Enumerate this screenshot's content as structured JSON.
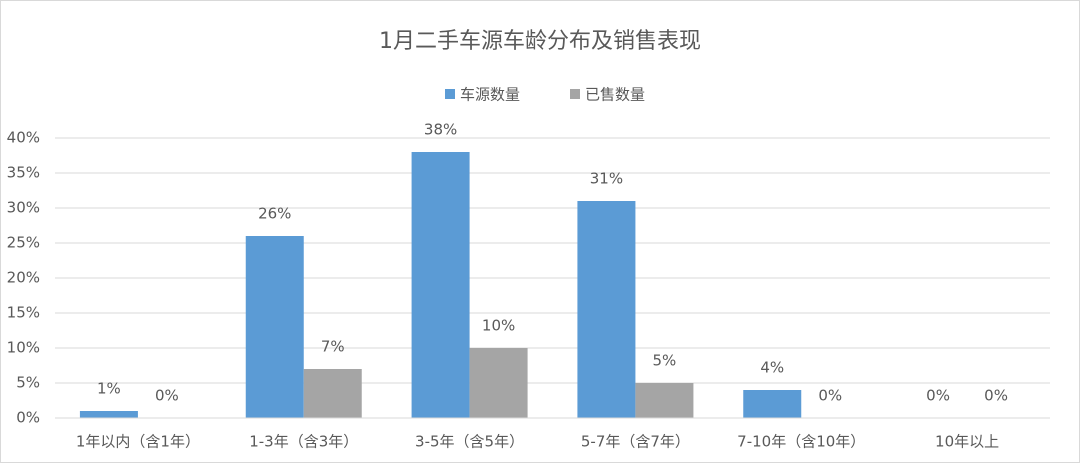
{
  "chart_data": {
    "type": "bar",
    "title": "1月二手车源车龄分布及销售表现",
    "categories": [
      "1年以内（含1年）",
      "1-3年（含3年）",
      "3-5年（含5年）",
      "5-7年（含7年）",
      "7-10年（含10年）",
      "10年以上"
    ],
    "series": [
      {
        "name": "车源数量",
        "color": "#5b9bd5",
        "values": [
          1,
          26,
          38,
          31,
          4,
          0
        ],
        "value_labels": [
          "1%",
          "26%",
          "38%",
          "31%",
          "4%",
          "0%"
        ]
      },
      {
        "name": "已售数量",
        "color": "#a5a5a5",
        "values": [
          0,
          7,
          10,
          5,
          0,
          0
        ],
        "value_labels": [
          "0%",
          "7%",
          "10%",
          "5%",
          "0%",
          "0%"
        ]
      }
    ],
    "ylim": [
      0,
      40
    ],
    "yticks": [
      {
        "value": 0,
        "label": "0%"
      },
      {
        "value": 5,
        "label": "5%"
      },
      {
        "value": 10,
        "label": "10%"
      },
      {
        "value": 15,
        "label": "15%"
      },
      {
        "value": 20,
        "label": "20%"
      },
      {
        "value": 25,
        "label": "25%"
      },
      {
        "value": 30,
        "label": "30%"
      },
      {
        "value": 35,
        "label": "35%"
      },
      {
        "value": 40,
        "label": "40%"
      }
    ],
    "grid": true,
    "legend": "top"
  }
}
